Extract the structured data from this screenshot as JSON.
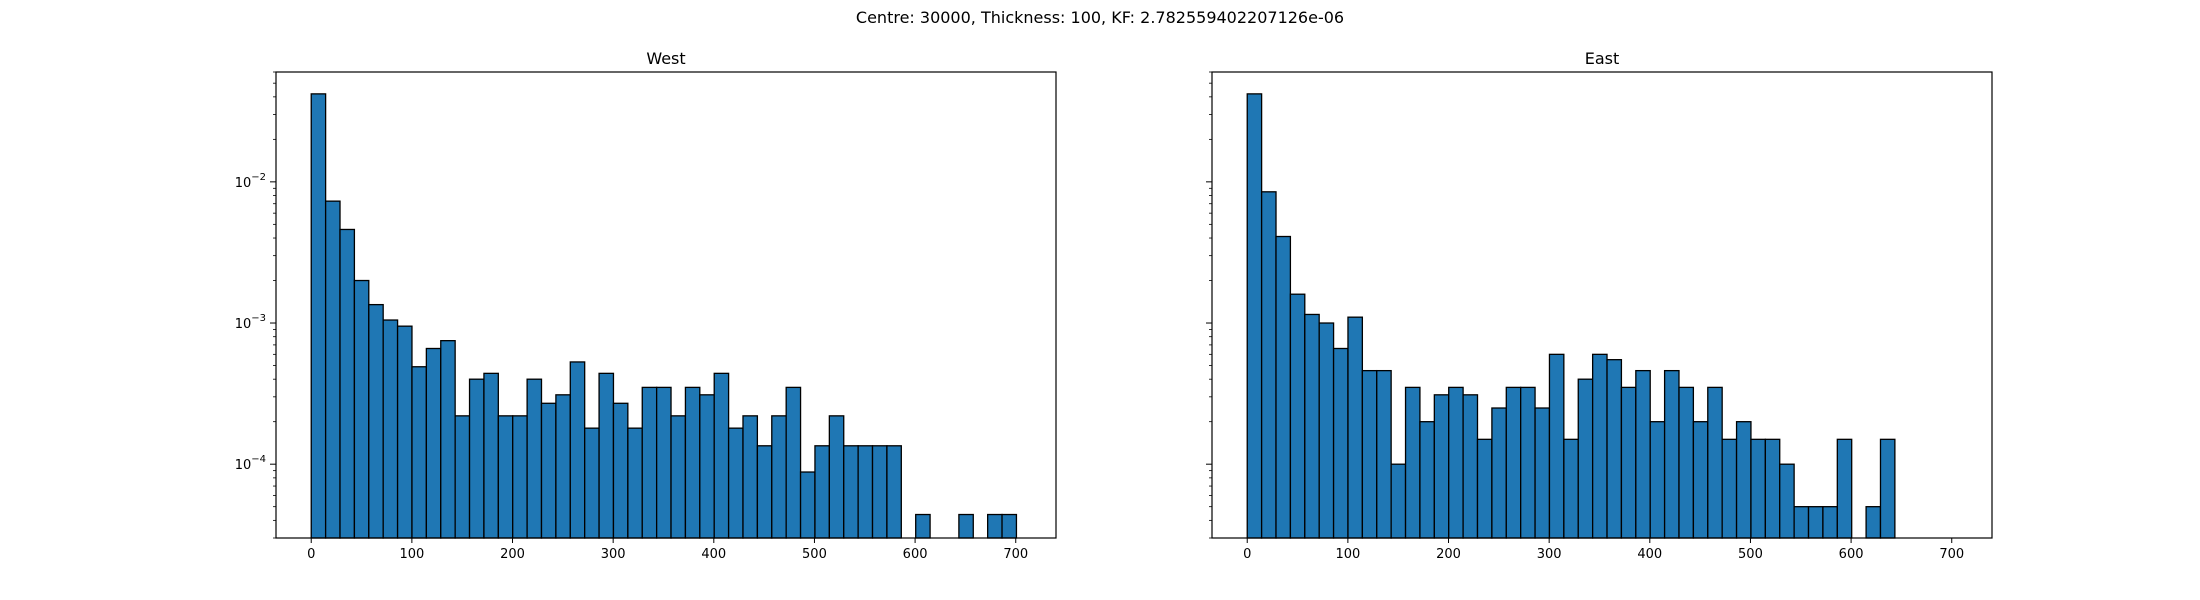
{
  "suptitle": "Centre: 30000, Thickness: 100, KF: 2.782559402207126e-06",
  "colors": {
    "bar_fill": "#1f77b4",
    "bar_edge": "#000000"
  },
  "chart_data": [
    {
      "type": "bar",
      "title": "West",
      "xlabel": "",
      "ylabel": "",
      "yscale": "log",
      "bin_width": 14.3,
      "xlim": [
        -35,
        740
      ],
      "ylim": [
        3e-05,
        0.06
      ],
      "xticks": [
        0,
        100,
        200,
        300,
        400,
        500,
        600,
        700
      ],
      "ytick_labels": [
        "10^-4",
        "10^-3",
        "10^-2"
      ],
      "bin_starts": [
        0,
        14.3,
        28.6,
        42.9,
        57.2,
        71.5,
        85.8,
        100.1,
        114.4,
        128.7,
        143,
        157.3,
        171.6,
        185.9,
        200.2,
        214.5,
        228.8,
        243.1,
        257.4,
        271.7,
        286,
        300.3,
        314.6,
        328.9,
        343.2,
        357.5,
        371.8,
        386.1,
        400.4,
        414.7,
        429,
        443.3,
        457.6,
        471.9,
        486.2,
        500.5,
        514.8,
        529.1,
        543.4,
        557.7,
        572,
        586.3,
        600.6,
        614.9,
        629.2,
        643.5,
        657.8,
        672.1,
        686.4
      ],
      "values": [
        0.042,
        0.0073,
        0.0046,
        0.002,
        0.00135,
        0.00105,
        0.00095,
        0.00049,
        0.00066,
        0.00075,
        0.00022,
        0.0004,
        0.00044,
        0.00022,
        0.00022,
        0.0004,
        0.00027,
        0.00031,
        0.00053,
        0.00018,
        0.00044,
        0.00027,
        0.00018,
        0.00035,
        0.00035,
        0.00022,
        0.00035,
        0.00031,
        0.00044,
        0.00018,
        0.00022,
        0.000135,
        0.00022,
        0.00035,
        8.8e-05,
        0.000135,
        0.00022,
        0.000135,
        0.000135,
        0.000135,
        0.000135,
        0,
        4.4e-05,
        0,
        0,
        4.4e-05,
        0,
        4.4e-05,
        4.4e-05
      ]
    },
    {
      "type": "bar",
      "title": "East",
      "xlabel": "",
      "ylabel": "",
      "yscale": "log",
      "bin_width": 14.3,
      "xlim": [
        -35,
        740
      ],
      "ylim": [
        3e-05,
        0.06
      ],
      "xticks": [
        0,
        100,
        200,
        300,
        400,
        500,
        600,
        700
      ],
      "bin_starts": [
        0,
        14.3,
        28.6,
        42.9,
        57.2,
        71.5,
        85.8,
        100.1,
        114.4,
        128.7,
        143,
        157.3,
        171.6,
        185.9,
        200.2,
        214.5,
        228.8,
        243.1,
        257.4,
        271.7,
        286,
        300.3,
        314.6,
        328.9,
        343.2,
        357.5,
        371.8,
        386.1,
        400.4,
        414.7,
        429,
        443.3,
        457.6,
        471.9,
        486.2,
        500.5,
        514.8,
        529.1,
        543.4,
        557.7,
        572,
        586.3,
        600.6,
        614.9,
        629.2
      ],
      "values": [
        0.042,
        0.0085,
        0.0041,
        0.0016,
        0.00115,
        0.001,
        0.00066,
        0.0011,
        0.00046,
        0.00046,
        0.0001,
        0.00035,
        0.0002,
        0.00031,
        0.00035,
        0.00031,
        0.00015,
        0.00025,
        0.00035,
        0.00035,
        0.00025,
        0.0006,
        0.00015,
        0.0004,
        0.0006,
        0.00055,
        0.00035,
        0.00046,
        0.0002,
        0.00046,
        0.00035,
        0.0002,
        0.00035,
        0.00015,
        0.0002,
        0.00015,
        0.00015,
        0.0001,
        5e-05,
        5e-05,
        5e-05,
        0.00015,
        0,
        5e-05,
        0.00015
      ]
    }
  ]
}
